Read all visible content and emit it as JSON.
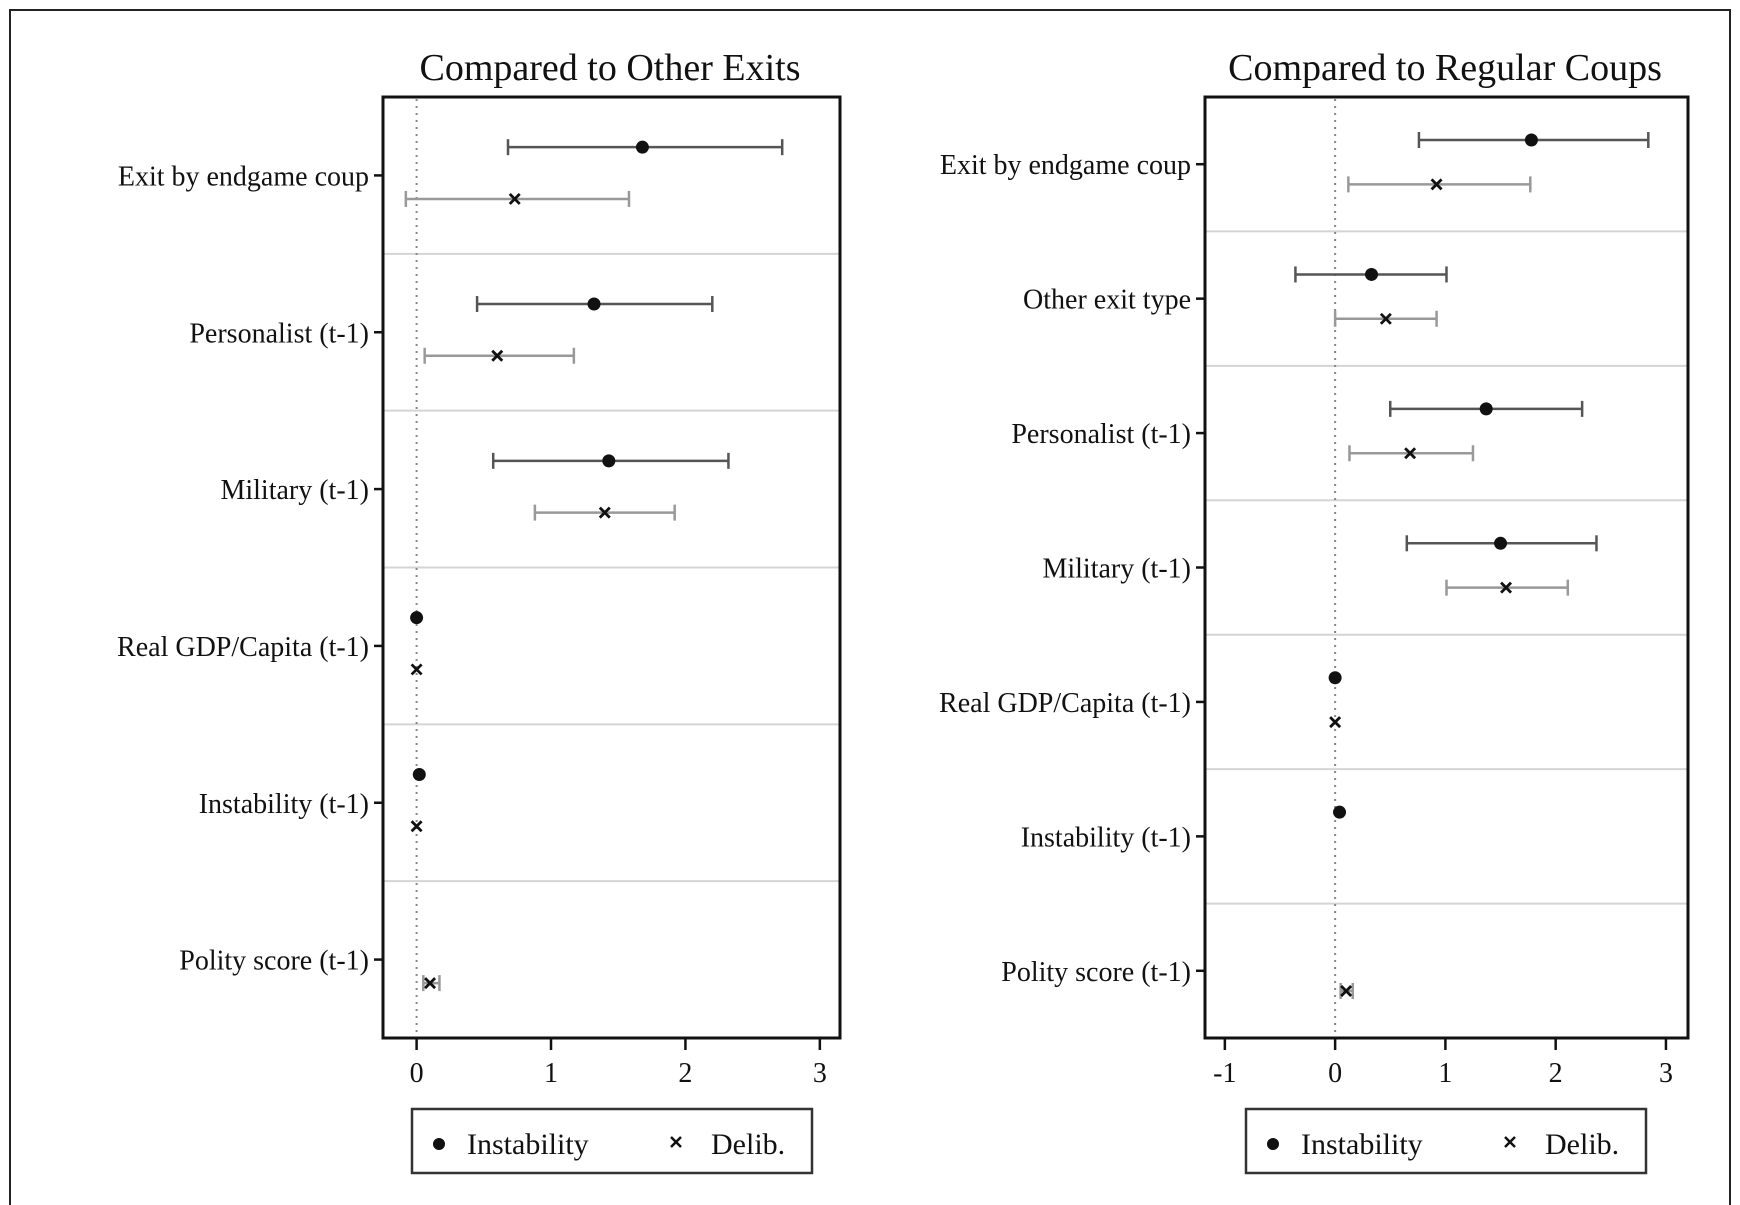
{
  "chart_data": [
    {
      "type": "scatter",
      "subtype": "coefficient-plot",
      "title": "Compared to Other Exits",
      "xlim": [
        -0.25,
        3.15
      ],
      "xticks": [
        0,
        1,
        2,
        3
      ],
      "reference_line_x": 0,
      "categories": [
        "Exit by endgame coup",
        "Personalist (t-1)",
        "Military (t-1)",
        "Real GDP/Capita (t-1)",
        "Instability (t-1)",
        "Polity score (t-1)"
      ],
      "series": [
        {
          "name": "Instability",
          "marker": "circle",
          "color": "#111111",
          "ci_color": "#555555",
          "points": [
            {
              "category": "Exit by endgame coup",
              "estimate": 1.68,
              "ci": [
                0.68,
                2.72
              ]
            },
            {
              "category": "Personalist (t-1)",
              "estimate": 1.32,
              "ci": [
                0.45,
                2.2
              ]
            },
            {
              "category": "Military (t-1)",
              "estimate": 1.43,
              "ci": [
                0.57,
                2.32
              ]
            },
            {
              "category": "Real GDP/Capita (t-1)",
              "estimate": 0.0,
              "ci": null
            },
            {
              "category": "Instability (t-1)",
              "estimate": 0.02,
              "ci": null
            },
            {
              "category": "Polity score (t-1)",
              "estimate": null,
              "ci": null
            }
          ]
        },
        {
          "name": "Delib.",
          "marker": "x",
          "color": "#111111",
          "ci_color": "#999999",
          "points": [
            {
              "category": "Exit by endgame coup",
              "estimate": 0.73,
              "ci": [
                -0.08,
                1.58
              ]
            },
            {
              "category": "Personalist (t-1)",
              "estimate": 0.6,
              "ci": [
                0.06,
                1.17
              ]
            },
            {
              "category": "Military (t-1)",
              "estimate": 1.4,
              "ci": [
                0.88,
                1.92
              ]
            },
            {
              "category": "Real GDP/Capita (t-1)",
              "estimate": 0.0,
              "ci": null
            },
            {
              "category": "Instability (t-1)",
              "estimate": 0.0,
              "ci": null
            },
            {
              "category": "Polity score (t-1)",
              "estimate": 0.1,
              "ci": [
                0.05,
                0.17
              ]
            }
          ]
        }
      ],
      "legend": {
        "position": "bottom-center",
        "entries": [
          "Instability",
          "Delib."
        ]
      },
      "grid": "horizontal-separators"
    },
    {
      "type": "scatter",
      "subtype": "coefficient-plot",
      "title": "Compared to Regular Coups",
      "xlim": [
        -1.18,
        3.2
      ],
      "xticks": [
        -1,
        0,
        1,
        2,
        3
      ],
      "reference_line_x": 0,
      "categories": [
        "Exit by endgame coup",
        "Other exit type",
        "Personalist (t-1)",
        "Military (t-1)",
        "Real GDP/Capita (t-1)",
        "Instability (t-1)",
        "Polity score (t-1)"
      ],
      "series": [
        {
          "name": "Instability",
          "marker": "circle",
          "color": "#111111",
          "ci_color": "#555555",
          "points": [
            {
              "category": "Exit by endgame coup",
              "estimate": 1.78,
              "ci": [
                0.76,
                2.84
              ]
            },
            {
              "category": "Other exit type",
              "estimate": 0.33,
              "ci": [
                -0.36,
                1.01
              ]
            },
            {
              "category": "Personalist (t-1)",
              "estimate": 1.37,
              "ci": [
                0.5,
                2.24
              ]
            },
            {
              "category": "Military (t-1)",
              "estimate": 1.5,
              "ci": [
                0.65,
                2.37
              ]
            },
            {
              "category": "Real GDP/Capita (t-1)",
              "estimate": 0.0,
              "ci": null
            },
            {
              "category": "Instability (t-1)",
              "estimate": 0.04,
              "ci": null
            },
            {
              "category": "Polity score (t-1)",
              "estimate": null,
              "ci": null
            }
          ]
        },
        {
          "name": "Delib.",
          "marker": "x",
          "color": "#111111",
          "ci_color": "#999999",
          "points": [
            {
              "category": "Exit by endgame coup",
              "estimate": 0.92,
              "ci": [
                0.12,
                1.77
              ]
            },
            {
              "category": "Other exit type",
              "estimate": 0.46,
              "ci": [
                0.0,
                0.92
              ]
            },
            {
              "category": "Personalist (t-1)",
              "estimate": 0.68,
              "ci": [
                0.13,
                1.25
              ]
            },
            {
              "category": "Military (t-1)",
              "estimate": 1.55,
              "ci": [
                1.01,
                2.11
              ]
            },
            {
              "category": "Real GDP/Capita (t-1)",
              "estimate": 0.0,
              "ci": null
            },
            {
              "category": "Instability (t-1)",
              "estimate": null,
              "ci": null
            },
            {
              "category": "Polity score (t-1)",
              "estimate": 0.1,
              "ci": [
                0.05,
                0.16
              ]
            }
          ]
        }
      ],
      "legend": {
        "position": "bottom-center",
        "entries": [
          "Instability",
          "Delib."
        ]
      },
      "grid": "horizontal-separators"
    }
  ]
}
